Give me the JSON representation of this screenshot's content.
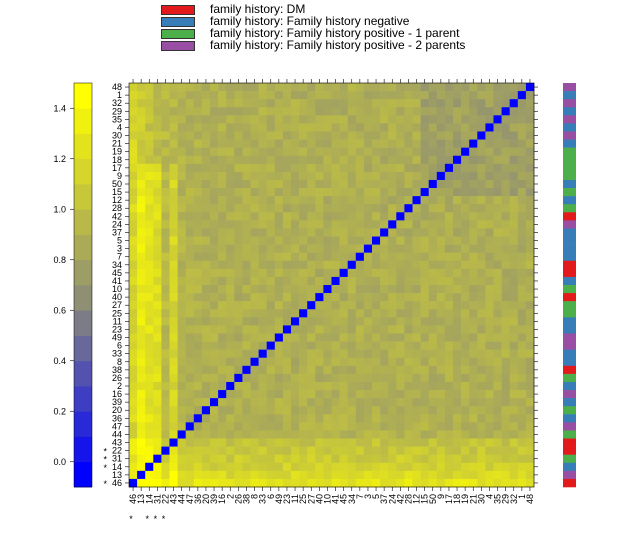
{
  "legend": {
    "title": "family history",
    "items": [
      {
        "label": "family history: DM",
        "color": "#e31a1c"
      },
      {
        "label": "family history: Family history negative",
        "color": "#377eb8"
      },
      {
        "label": "family history: Family history positive - 1 parent",
        "color": "#4daf4a"
      },
      {
        "label": "family history: Family history positive - 2 parents",
        "color": "#984ea3"
      }
    ]
  },
  "chart_data": {
    "type": "heatmap",
    "title": "",
    "colorscale": {
      "ticks": [
        "0.0",
        "0.2",
        "0.4",
        "0.6",
        "0.8",
        "1.0",
        "1.2",
        "1.4"
      ],
      "range": [
        -0.1,
        1.5
      ],
      "low_color": "#0000ff",
      "mid_color": "#8c8c78",
      "high_color": "#ffff00",
      "diagonal_color": "#0000ff"
    },
    "row_labels_top_to_bottom": [
      "48",
      "1",
      "32",
      "29",
      "35",
      "4",
      "30",
      "21",
      "19",
      "18",
      "17",
      "9",
      "50",
      "15",
      "12",
      "28",
      "42",
      "24",
      "37",
      "5",
      "3",
      "7",
      "34",
      "45",
      "41",
      "10",
      "40",
      "27",
      "25",
      "11",
      "23",
      "49",
      "6",
      "33",
      "8",
      "38",
      "26",
      "2",
      "16",
      "39",
      "20",
      "36",
      "47",
      "44",
      "43",
      "22",
      "31",
      "14",
      "13",
      "46"
    ],
    "column_labels_left_to_right": [
      "46",
      "13",
      "14",
      "31",
      "22",
      "43",
      "44",
      "47",
      "36",
      "20",
      "39",
      "16",
      "2",
      "26",
      "38",
      "8",
      "33",
      "6",
      "49",
      "23",
      "11",
      "25",
      "27",
      "40",
      "10",
      "41",
      "45",
      "34",
      "7",
      "3",
      "5",
      "37",
      "24",
      "42",
      "28",
      "12",
      "15",
      "50",
      "9",
      "17",
      "18",
      "19",
      "21",
      "30",
      "4",
      "35",
      "29",
      "32",
      "1",
      "48"
    ],
    "marked_labels": [
      "46",
      "14",
      "31",
      "22"
    ],
    "bright_columns": [
      "13",
      "14",
      "31",
      "43"
    ],
    "side_bar_categories_top_to_bottom": [
      "Family history positive - 2 parents",
      "Family history negative",
      "Family history positive - 2 parents",
      "Family history negative",
      "Family history positive - 2 parents",
      "Family history negative",
      "Family history positive - 2 parents",
      "Family history negative",
      "Family history positive - 1 parent",
      "Family history positive - 1 parent",
      "Family history positive - 1 parent",
      "Family history positive - 1 parent",
      "Family history negative",
      "Family history positive - 1 parent",
      "Family history negative",
      "Family history positive - 1 parent",
      "DM",
      "Family history positive - 2 parents",
      "Family history negative",
      "Family history negative",
      "Family history negative",
      "Family history negative",
      "DM",
      "DM",
      "Family history negative",
      "Family history positive - 1 parent",
      "DM",
      "Family history positive - 1 parent",
      "Family history positive - 1 parent",
      "Family history negative",
      "Family history negative",
      "Family history positive - 2 parents",
      "Family history positive - 2 parents",
      "Family history negative",
      "Family history negative",
      "DM",
      "Family history positive - 1 parent",
      "Family history negative",
      "Family history positive - 2 parents",
      "Family history negative",
      "Family history positive - 1 parent",
      "Family history negative",
      "Family history positive - 2 parents",
      "Family history positive - 1 parent",
      "DM",
      "DM",
      "Family history positive - 1 parent",
      "Family history negative",
      "Family history positive - 2 parents",
      "DM"
    ]
  }
}
